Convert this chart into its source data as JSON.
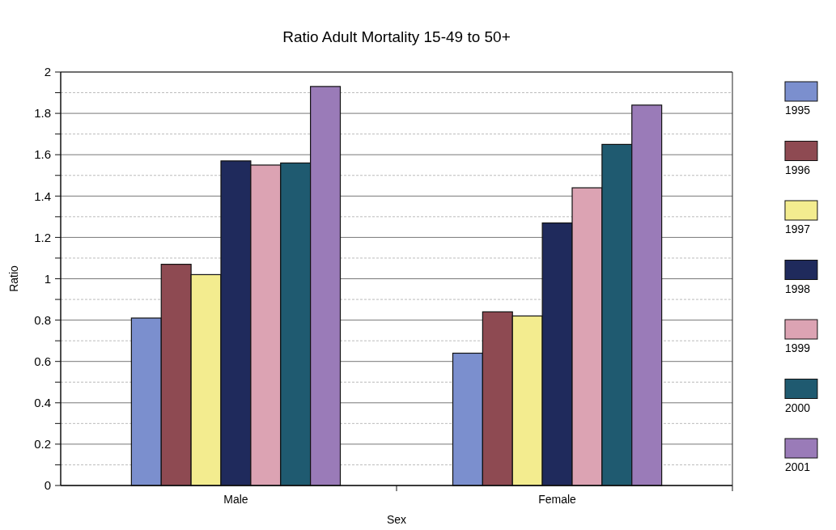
{
  "chart_data": {
    "type": "bar",
    "title": "Ratio Adult Mortality 15-49 to 50+",
    "xlabel": "Sex",
    "ylabel": "Ratio",
    "categories": [
      "Male",
      "Female"
    ],
    "series": [
      {
        "name": "1995",
        "color": "#7b8fce",
        "values": [
          0.81,
          0.64
        ]
      },
      {
        "name": "1996",
        "color": "#8e4a52",
        "values": [
          1.07,
          0.84
        ]
      },
      {
        "name": "1997",
        "color": "#f3ec8f",
        "values": [
          1.02,
          0.82
        ]
      },
      {
        "name": "1998",
        "color": "#1f2a5c",
        "values": [
          1.57,
          1.27
        ]
      },
      {
        "name": "1999",
        "color": "#dca3b3",
        "values": [
          1.55,
          1.44
        ]
      },
      {
        "name": "2000",
        "color": "#1f5a70",
        "values": [
          1.56,
          1.65
        ]
      },
      {
        "name": "2001",
        "color": "#9a7bb8",
        "values": [
          1.93,
          1.84
        ]
      }
    ],
    "ylim": [
      0,
      2
    ],
    "yticks": [
      0,
      {
        "value": 0.1,
        "label": null
      },
      0.2,
      {
        "value": 0.3,
        "label": null
      },
      0.4,
      {
        "value": 0.5,
        "label": null
      },
      0.6,
      {
        "value": 0.7,
        "label": null
      },
      0.8,
      {
        "value": 0.9,
        "label": null
      },
      1,
      {
        "value": 1.1,
        "label": null
      },
      1.2,
      {
        "value": 1.3,
        "label": null
      },
      1.4,
      {
        "value": 1.5,
        "label": null
      },
      1.6,
      {
        "value": 1.7,
        "label": null
      },
      1.8,
      {
        "value": 1.9,
        "label": null
      },
      2
    ],
    "grid": "y",
    "legend": "right"
  }
}
